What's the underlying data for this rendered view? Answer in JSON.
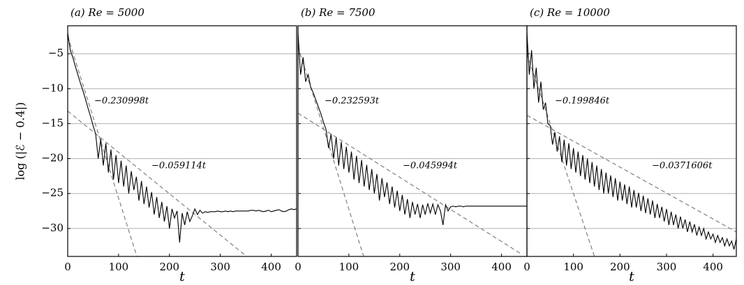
{
  "chart_data": [
    {
      "type": "line",
      "title": "(a) Re = 5000",
      "x_label": "t",
      "y_label": "log (|ℰ − 0.4|)",
      "xlim": [
        0,
        450
      ],
      "ylim": [
        -34,
        -1
      ],
      "xticks": [
        0,
        100,
        200,
        300,
        400
      ],
      "yticks": [
        {
          "value": -5,
          "label": "−5"
        },
        {
          "value": -10,
          "label": "−10"
        },
        {
          "value": -15,
          "label": "−15"
        },
        {
          "value": -20,
          "label": "−20"
        },
        {
          "value": -25,
          "label": "−25"
        },
        {
          "value": -30,
          "label": "−30"
        }
      ],
      "ytick_labels": true,
      "grid": true,
      "series": [
        {
          "color": "#000000",
          "x": [
            0,
            5,
            10,
            15,
            20,
            25,
            30,
            35,
            40,
            45,
            50,
            55,
            60,
            65,
            70,
            75,
            80,
            85,
            90,
            95,
            100,
            105,
            110,
            115,
            120,
            125,
            130,
            135,
            140,
            145,
            150,
            155,
            160,
            165,
            170,
            175,
            180,
            185,
            190,
            195,
            200,
            205,
            210,
            215,
            220,
            225,
            230,
            235,
            240,
            245,
            250,
            255,
            260,
            265,
            270,
            275,
            280,
            285,
            290,
            295,
            300,
            305,
            310,
            315,
            320,
            325,
            330,
            335,
            340,
            345,
            350,
            355,
            360,
            365,
            370,
            375,
            380,
            385,
            390,
            395,
            400,
            405,
            410,
            415,
            420,
            425,
            430,
            435,
            440,
            445,
            450
          ],
          "values": [
            -2,
            -4.5,
            -5.5,
            -6.8,
            -8,
            -9.2,
            -10.3,
            -11.5,
            -12.8,
            -14,
            -15.3,
            -16.5,
            -20,
            -17.2,
            -21,
            -17.8,
            -22,
            -18.7,
            -23,
            -19.5,
            -23.5,
            -20.3,
            -24,
            -21,
            -25,
            -21.8,
            -24.5,
            -22.6,
            -26,
            -23.2,
            -26.5,
            -24,
            -27,
            -24.8,
            -28,
            -25.5,
            -28.5,
            -26.2,
            -29,
            -26.8,
            -30,
            -27.2,
            -28.5,
            -27.5,
            -32,
            -27.8,
            -29.5,
            -27.6,
            -29,
            -28.2,
            -27.2,
            -28,
            -27.4,
            -27.8,
            -27.6,
            -27.7,
            -27.6,
            -27.6,
            -27.6,
            -27.5,
            -27.6,
            -27.6,
            -27.5,
            -27.6,
            -27.5,
            -27.6,
            -27.5,
            -27.5,
            -27.5,
            -27.5,
            -27.5,
            -27.5,
            -27.4,
            -27.4,
            -27.5,
            -27.4,
            -27.5,
            -27.6,
            -27.5,
            -27.4,
            -27.6,
            -27.5,
            -27.4,
            -27.3,
            -27.5,
            -27.6,
            -27.5,
            -27.3,
            -27.2,
            -27.3,
            -27.2
          ]
        }
      ],
      "fits": [
        {
          "label": "−0.230998t",
          "color": "#808080",
          "x": [
            0,
            136
          ],
          "values": [
            -2.5,
            -34
          ]
        },
        {
          "label": "−0.059114t",
          "color": "#808080",
          "x": [
            0,
            350
          ],
          "values": [
            -13.2,
            -33.9
          ]
        }
      ]
    },
    {
      "type": "line",
      "title": "(b) Re = 7500",
      "x_label": "t",
      "xlim": [
        0,
        450
      ],
      "ylim": [
        -34,
        -1
      ],
      "xticks": [
        0,
        100,
        200,
        300,
        400
      ],
      "yticks": [
        -5,
        -10,
        -15,
        -20,
        -25,
        -30
      ],
      "ytick_labels": false,
      "grid": true,
      "series": [
        {
          "color": "#000000",
          "x": [
            0,
            5,
            10,
            15,
            20,
            25,
            30,
            35,
            40,
            45,
            50,
            55,
            60,
            65,
            70,
            75,
            80,
            85,
            90,
            95,
            100,
            105,
            110,
            115,
            120,
            125,
            130,
            135,
            140,
            145,
            150,
            155,
            160,
            165,
            170,
            175,
            180,
            185,
            190,
            195,
            200,
            205,
            210,
            215,
            220,
            225,
            230,
            235,
            240,
            245,
            250,
            255,
            260,
            265,
            270,
            275,
            280,
            285,
            290,
            295,
            300,
            305,
            310,
            315,
            320,
            325,
            330,
            335,
            340,
            345,
            350,
            355,
            360,
            365,
            370,
            375,
            380,
            385,
            390,
            395,
            400,
            405,
            410,
            415,
            420,
            425,
            430,
            435,
            440,
            445,
            450
          ],
          "values": [
            -2,
            -8,
            -5.5,
            -9,
            -8,
            -9.8,
            -10.6,
            -11.6,
            -12.6,
            -13.6,
            -14.8,
            -15.8,
            -18.5,
            -16.5,
            -20,
            -17,
            -21,
            -17.6,
            -21.5,
            -18.3,
            -22,
            -19,
            -23,
            -19.6,
            -23.5,
            -20.2,
            -24,
            -20.9,
            -24.5,
            -21.5,
            -25,
            -22.2,
            -26,
            -22.8,
            -25.5,
            -23.4,
            -26.5,
            -24,
            -27,
            -24.6,
            -27.5,
            -25.2,
            -28,
            -25.8,
            -28.5,
            -26.2,
            -28,
            -26.5,
            -28.5,
            -26.6,
            -28,
            -26.4,
            -27.8,
            -26.5,
            -28,
            -26.6,
            -27.5,
            -29.5,
            -26.6,
            -27.5,
            -26.9,
            -26.8,
            -26.9,
            -26.8,
            -26.8,
            -26.9,
            -26.8,
            -26.8,
            -26.8,
            -26.8,
            -26.8,
            -26.8,
            -26.8,
            -26.8,
            -26.8,
            -26.8,
            -26.8,
            -26.8,
            -26.8,
            -26.8,
            -26.8,
            -26.8,
            -26.8,
            -26.8,
            -26.8,
            -26.8,
            -26.8,
            -26.8,
            -26.8,
            -26.8,
            -26.8
          ]
        }
      ],
      "fits": [
        {
          "label": "−0.232593t",
          "color": "#808080",
          "x": [
            0,
            129
          ],
          "values": [
            -4,
            -34
          ]
        },
        {
          "label": "−0.045994t",
          "color": "#808080",
          "x": [
            0,
            440
          ],
          "values": [
            -13.5,
            -33.7
          ]
        }
      ]
    },
    {
      "type": "line",
      "title": "(c) Re = 10000",
      "x_label": "t",
      "xlim": [
        0,
        450
      ],
      "ylim": [
        -34,
        -1
      ],
      "xticks": [
        0,
        100,
        200,
        300,
        400
      ],
      "yticks": [
        -5,
        -10,
        -15,
        -20,
        -25,
        -30
      ],
      "ytick_labels": false,
      "grid": true,
      "series": [
        {
          "color": "#000000",
          "x": [
            0,
            5,
            10,
            15,
            20,
            25,
            30,
            35,
            40,
            45,
            50,
            55,
            60,
            65,
            70,
            75,
            80,
            85,
            90,
            95,
            100,
            105,
            110,
            115,
            120,
            125,
            130,
            135,
            140,
            145,
            150,
            155,
            160,
            165,
            170,
            175,
            180,
            185,
            190,
            195,
            200,
            205,
            210,
            215,
            220,
            225,
            230,
            235,
            240,
            245,
            250,
            255,
            260,
            265,
            270,
            275,
            280,
            285,
            290,
            295,
            300,
            305,
            310,
            315,
            320,
            325,
            330,
            335,
            340,
            345,
            350,
            355,
            360,
            365,
            370,
            375,
            380,
            385,
            390,
            395,
            400,
            405,
            410,
            415,
            420,
            425,
            430,
            435,
            440,
            445,
            450
          ],
          "values": [
            -2,
            -8,
            -4.5,
            -10,
            -7,
            -12,
            -9,
            -13,
            -12,
            -15,
            -15.3,
            -18,
            -16.2,
            -19,
            -16.8,
            -20.5,
            -17.3,
            -21,
            -17.8,
            -21.5,
            -18.5,
            -22,
            -19,
            -22.5,
            -19.5,
            -23,
            -20,
            -23.5,
            -20.5,
            -24,
            -21,
            -24.5,
            -21.5,
            -25,
            -22,
            -25,
            -22.4,
            -25.5,
            -22.8,
            -26,
            -23.3,
            -26,
            -23.7,
            -26.5,
            -24,
            -27,
            -24.5,
            -27,
            -24.9,
            -27.5,
            -25.3,
            -27.8,
            -25.7,
            -28,
            -26,
            -28.5,
            -26.5,
            -28.5,
            -26.9,
            -29,
            -27.2,
            -29.5,
            -27.6,
            -29.5,
            -28,
            -30,
            -28.3,
            -30,
            -28.7,
            -30.5,
            -29,
            -30.5,
            -29.4,
            -31,
            -29.8,
            -31,
            -30,
            -31.5,
            -30.5,
            -31.5,
            -30.8,
            -32,
            -31,
            -32,
            -31.3,
            -32.5,
            -31.5,
            -32.5,
            -31.8,
            -33,
            -31.5
          ]
        }
      ],
      "fits": [
        {
          "label": "−0.199846t",
          "color": "#808080",
          "x": [
            0,
            145
          ],
          "values": [
            -5,
            -34
          ]
        },
        {
          "label": "−0.0371606t",
          "color": "#808080",
          "x": [
            0,
            450
          ],
          "values": [
            -13.8,
            -30.5
          ]
        }
      ]
    }
  ]
}
